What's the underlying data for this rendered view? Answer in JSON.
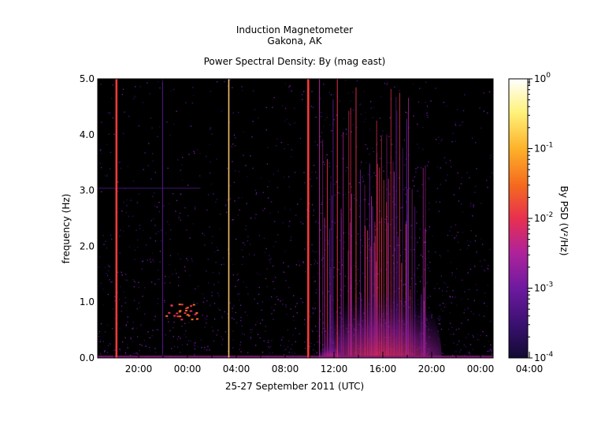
{
  "header": {
    "line1": "Induction Magnetometer",
    "line2": "Gakona, AK"
  },
  "chart_data": {
    "type": "heatmap",
    "title": "Power Spectral Density: By (mag east)",
    "xlabel": "25-27 September 2011 (UTC)",
    "ylabel": "frequency (Hz)",
    "ylim": [
      0,
      5
    ],
    "y_ticks": [
      "0.0",
      "1.0",
      "2.0",
      "3.0",
      "4.0",
      "5.0"
    ],
    "x_ticks": [
      "20:00",
      "00:00",
      "04:00",
      "08:00",
      "12:00",
      "16:00",
      "20:00",
      "00:00",
      "04:00"
    ],
    "colorbar": {
      "label": "By PSD (V²/Hz)",
      "scale": "log",
      "range": [
        0.0001,
        1
      ],
      "tick_labels": [
        {
          "base": "10",
          "exp": "-4"
        },
        {
          "base": "10",
          "exp": "-3"
        },
        {
          "base": "10",
          "exp": "-2"
        },
        {
          "base": "10",
          "exp": "-1"
        },
        {
          "base": "10",
          "exp": "0"
        }
      ],
      "colormap": [
        "#120a33",
        "#3a1070",
        "#6e1aa0",
        "#b0239a",
        "#e8304f",
        "#f56a1e",
        "#fdb22a",
        "#fff27a",
        "#ffffff"
      ]
    },
    "background_color": "#000000"
  }
}
